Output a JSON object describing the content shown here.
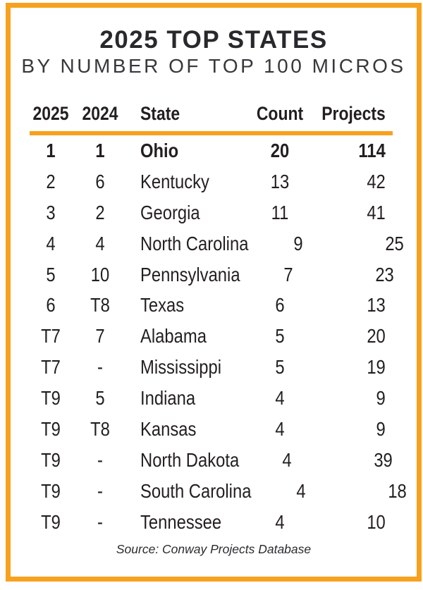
{
  "header": {
    "title": "2025 TOP STATES",
    "subtitle": "BY NUMBER OF TOP 100 MICROS"
  },
  "table": {
    "columns": [
      "2025",
      "2024",
      "State",
      "Count",
      "Projects"
    ],
    "rows": [
      {
        "rank2025": "1",
        "rank2024": "1",
        "state": "Ohio",
        "count": "20",
        "projects": "114",
        "bold": true
      },
      {
        "rank2025": "2",
        "rank2024": "6",
        "state": "Kentucky",
        "count": "13",
        "projects": "42"
      },
      {
        "rank2025": "3",
        "rank2024": "2",
        "state": "Georgia",
        "count": "11",
        "projects": "41"
      },
      {
        "rank2025": "4",
        "rank2024": "4",
        "state": "North Carolina",
        "count": "9",
        "projects": "25"
      },
      {
        "rank2025": "5",
        "rank2024": "10",
        "state": "Pennsylvania",
        "count": "7",
        "projects": "23"
      },
      {
        "rank2025": "6",
        "rank2024": "T8",
        "state": "Texas",
        "count": "6",
        "projects": "13"
      },
      {
        "rank2025": "T7",
        "rank2024": "7",
        "state": "Alabama",
        "count": "5",
        "projects": "20"
      },
      {
        "rank2025": "T7",
        "rank2024": "-",
        "state": "Mississippi",
        "count": "5",
        "projects": "19"
      },
      {
        "rank2025": "T9",
        "rank2024": "5",
        "state": "Indiana",
        "count": "4",
        "projects": "9"
      },
      {
        "rank2025": "T9",
        "rank2024": "T8",
        "state": "Kansas",
        "count": "4",
        "projects": "9"
      },
      {
        "rank2025": "T9",
        "rank2024": "-",
        "state": "North Dakota",
        "count": "4",
        "projects": "39"
      },
      {
        "rank2025": "T9",
        "rank2024": "-",
        "state": "South Carolina",
        "count": "4",
        "projects": "18"
      },
      {
        "rank2025": "T9",
        "rank2024": "-",
        "state": "Tennessee",
        "count": "4",
        "projects": "10"
      }
    ]
  },
  "footer": {
    "source": "Source: Conway Projects Database"
  },
  "colors": {
    "accent_orange": "#F7A11E",
    "text_dark": "#231F20"
  },
  "chart_data": {
    "type": "table",
    "title": "2025 TOP STATES",
    "subtitle": "BY NUMBER OF TOP 100 MICROS",
    "columns": [
      "2025",
      "2024",
      "State",
      "Count",
      "Projects"
    ],
    "rows": [
      [
        "1",
        "1",
        "Ohio",
        "20",
        "114"
      ],
      [
        "2",
        "6",
        "Kentucky",
        "13",
        "42"
      ],
      [
        "3",
        "2",
        "Georgia",
        "11",
        "41"
      ],
      [
        "4",
        "4",
        "North Carolina",
        "9",
        "25"
      ],
      [
        "5",
        "10",
        "Pennsylvania",
        "7",
        "23"
      ],
      [
        "6",
        "T8",
        "Texas",
        "6",
        "13"
      ],
      [
        "T7",
        "7",
        "Alabama",
        "5",
        "20"
      ],
      [
        "T7",
        "-",
        "Mississippi",
        "5",
        "19"
      ],
      [
        "T9",
        "5",
        "Indiana",
        "4",
        "9"
      ],
      [
        "T9",
        "T8",
        "Kansas",
        "4",
        "9"
      ],
      [
        "T9",
        "-",
        "North Dakota",
        "4",
        "39"
      ],
      [
        "T9",
        "-",
        "South Carolina",
        "4",
        "18"
      ],
      [
        "T9",
        "-",
        "Tennessee",
        "4",
        "10"
      ]
    ],
    "source": "Source: Conway Projects Database"
  }
}
